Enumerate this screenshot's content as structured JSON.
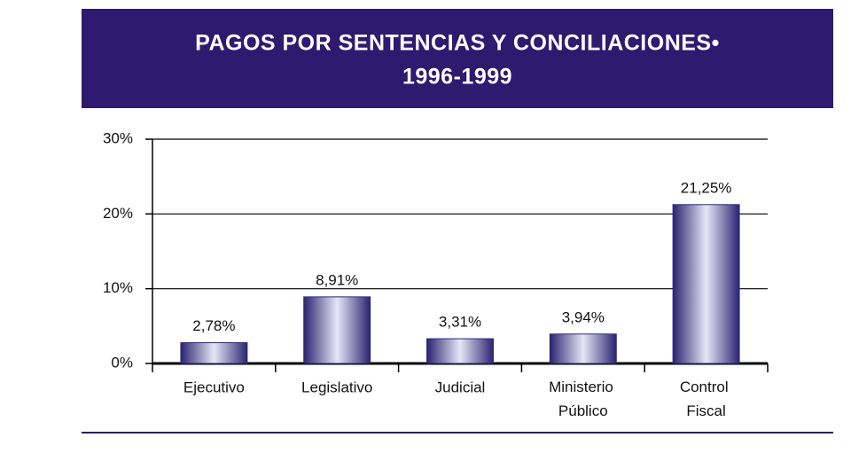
{
  "chart_data": {
    "type": "bar",
    "title": "PAGOS POR SENTENCIAS Y CONCILIACIONES•",
    "subtitle": "1996-1999",
    "categories": [
      "Ejecutivo",
      "Legislativo",
      "Judicial",
      "Ministerio Público",
      "Control Fiscal"
    ],
    "values": [
      2.78,
      8.91,
      3.31,
      3.94,
      21.25
    ],
    "value_labels": [
      "2,78%",
      "8,91%",
      "3,31%",
      "3,94%",
      "21,25%"
    ],
    "color": "#2e2a7a",
    "ylim": [
      0,
      30
    ],
    "yticks": [
      {
        "value": 0,
        "label": "0%"
      },
      {
        "value": 10,
        "label": "10%"
      },
      {
        "value": 20,
        "label": "20%"
      },
      {
        "value": 30,
        "label": "30%"
      }
    ],
    "grid": true
  }
}
